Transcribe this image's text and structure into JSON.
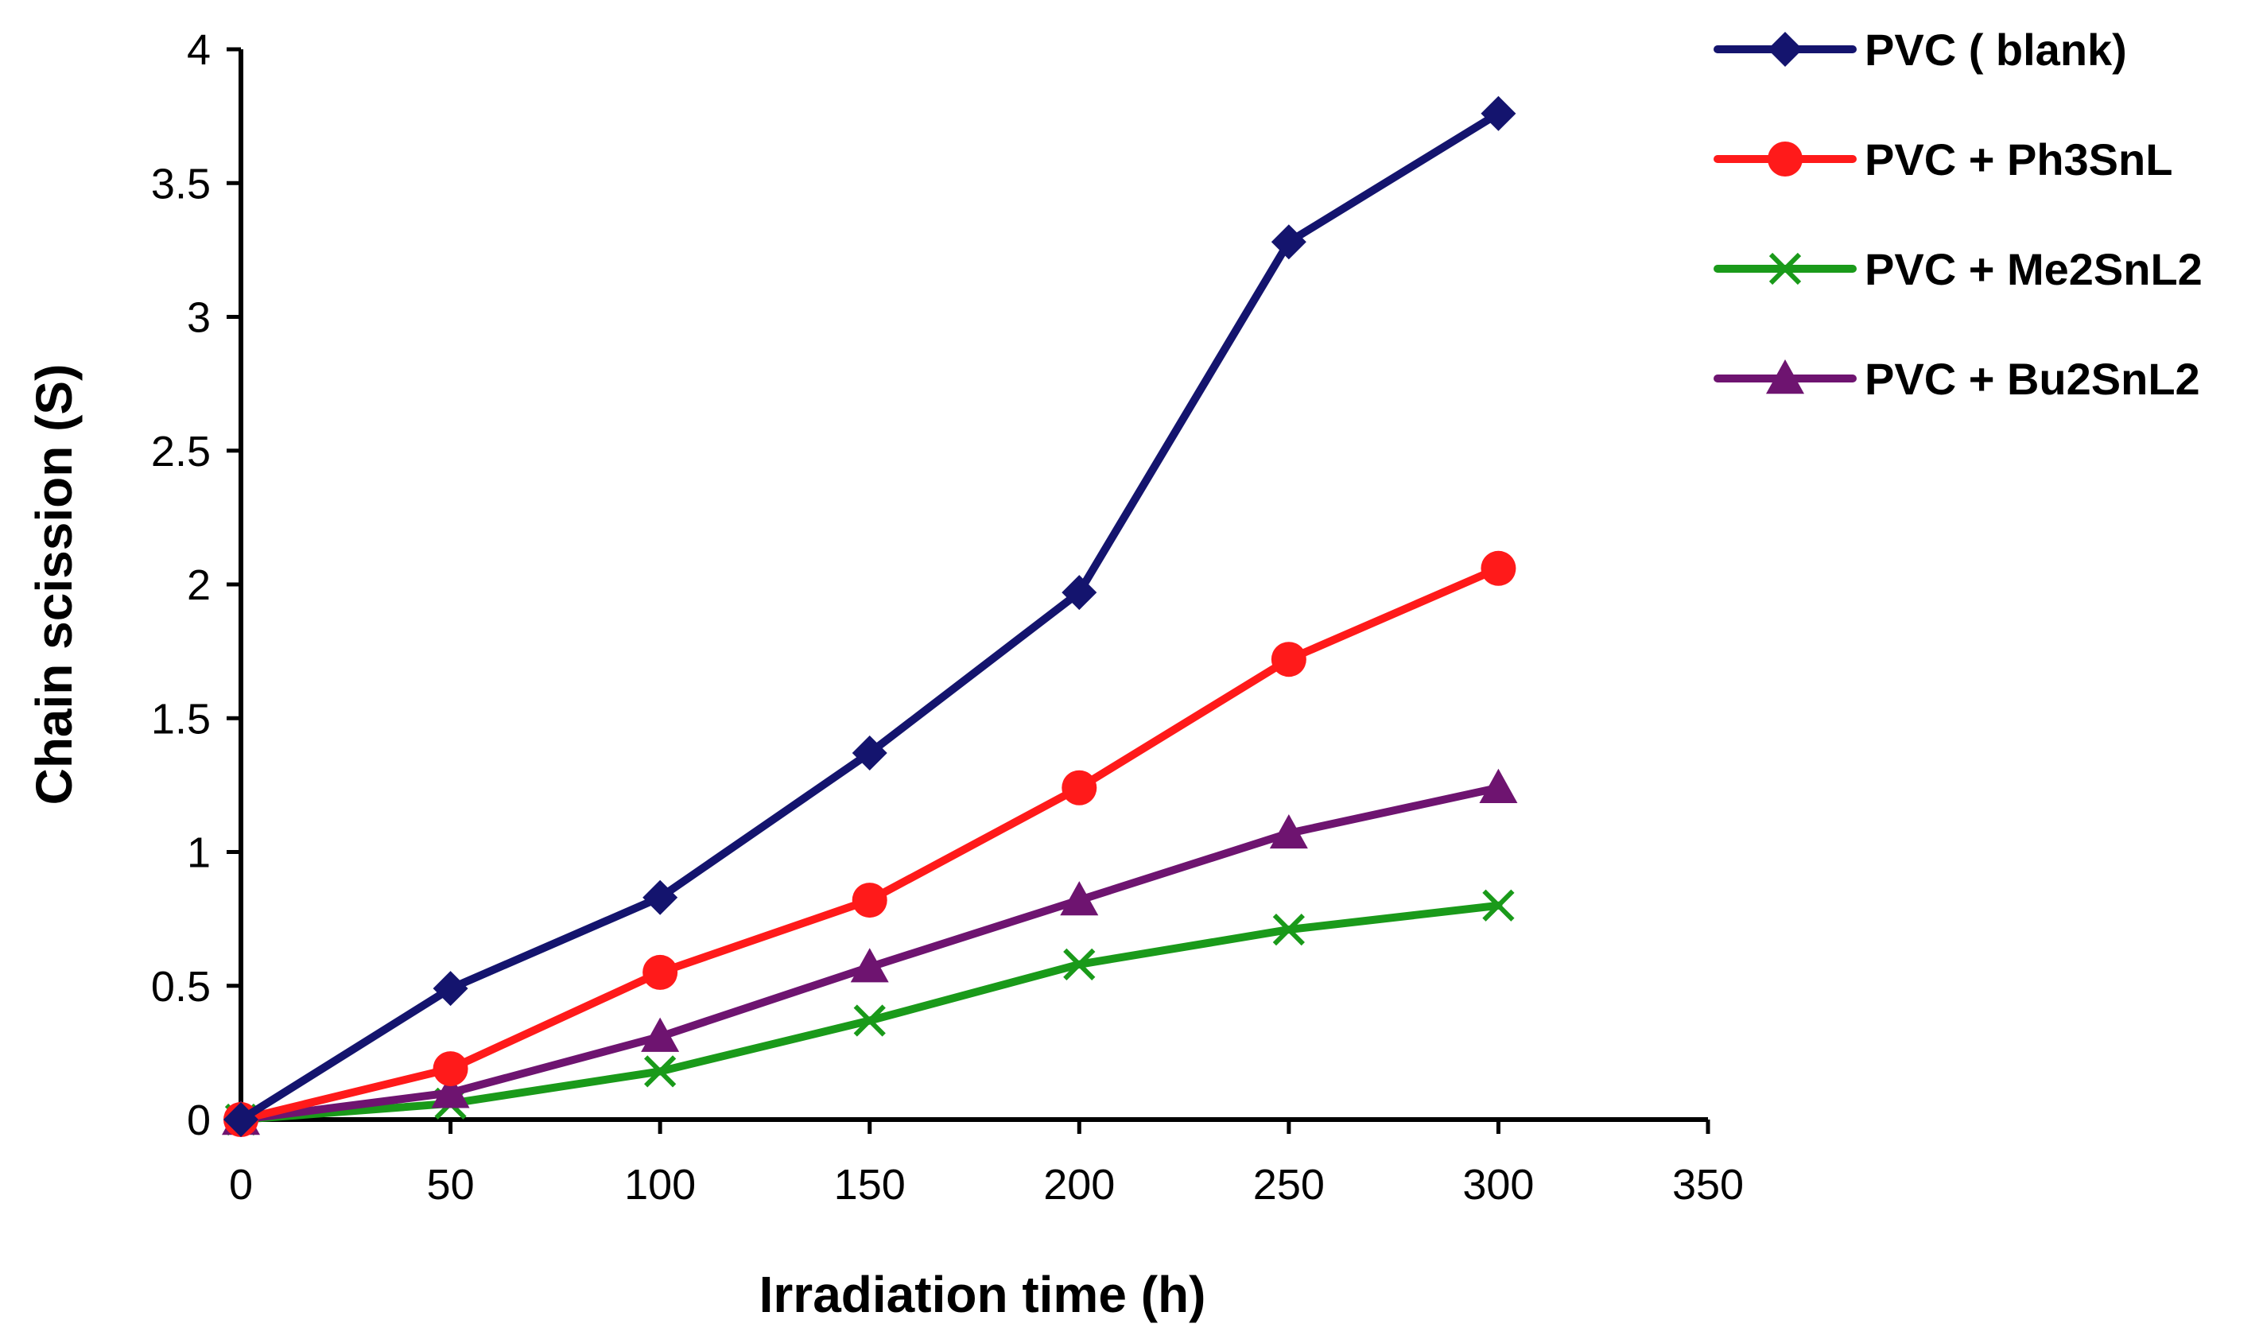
{
  "chart_data": {
    "type": "line",
    "title": "",
    "xlabel": "Irradiation time (h)",
    "ylabel": "Chain scission (S)",
    "xlim": [
      0,
      350
    ],
    "ylim": [
      0,
      4
    ],
    "xticks": [
      0,
      50,
      100,
      150,
      200,
      250,
      300,
      350
    ],
    "yticks": [
      0,
      0.5,
      1,
      1.5,
      2,
      2.5,
      3,
      3.5,
      4
    ],
    "xtick_labels": [
      "0",
      "50",
      "100",
      "150",
      "200",
      "250",
      "300",
      "350"
    ],
    "ytick_labels": [
      "0",
      "0.5",
      "1",
      "1.5",
      "2",
      "2.5",
      "3",
      "3.5",
      "4"
    ],
    "grid": false,
    "legend_position": "top-right, outside plot",
    "x": [
      0,
      50,
      100,
      150,
      200,
      250,
      300
    ],
    "series": [
      {
        "name": "PVC ( blank)",
        "color": "#14146E",
        "marker": "diamond",
        "values": [
          0,
          0.49,
          0.83,
          1.37,
          1.97,
          3.28,
          3.76
        ]
      },
      {
        "name": "PVC + Ph3SnL",
        "color": "#FF1A1A",
        "marker": "circle",
        "values": [
          0,
          0.19,
          0.55,
          0.82,
          1.24,
          1.72,
          2.06
        ]
      },
      {
        "name": "PVC + Me2SnL2",
        "color": "#1A9A1A",
        "marker": "x",
        "values": [
          0,
          0.06,
          0.18,
          0.37,
          0.58,
          0.71,
          0.8
        ]
      },
      {
        "name": "PVC + Bu2SnL2",
        "color": "#6E1470",
        "marker": "triangle",
        "values": [
          0,
          0.1,
          0.31,
          0.57,
          0.82,
          1.07,
          1.24
        ]
      }
    ]
  }
}
